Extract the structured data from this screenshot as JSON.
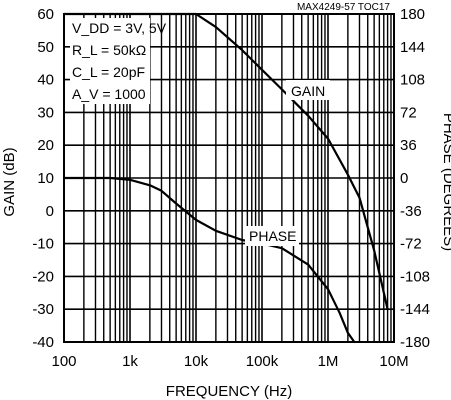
{
  "chart_data": {
    "type": "line",
    "note": "MAX4249-57 TOC17",
    "xlabel": "FREQUENCY (Hz)",
    "ylabel_left": "GAIN (dB)",
    "ylabel_right": "PHASE (DEGREES)",
    "x_scale": "log",
    "xlim": [
      100,
      10000000
    ],
    "ylim_left": [
      -40,
      60
    ],
    "ylim_right": [
      -180,
      180
    ],
    "x_ticks": [
      "100",
      "1k",
      "10k",
      "100k",
      "1M",
      "10M"
    ],
    "y_ticks_left": [
      "60",
      "50",
      "40",
      "30",
      "20",
      "10",
      "0",
      "-10",
      "-20",
      "-30",
      "-40"
    ],
    "y_ticks_right": [
      "180",
      "144",
      "108",
      "72",
      "36",
      "0",
      "-36",
      "-72",
      "-108",
      "-144",
      "-180"
    ],
    "grid": true,
    "conditions": {
      "line1": "V_DD = 3V, 5V",
      "line2": "R_L = 50kΩ",
      "line3": "C_L = 20pF",
      "line4": "A_V = 1000"
    },
    "series": [
      {
        "name": "GAIN",
        "axis": "left",
        "x": [
          100,
          1000,
          10000,
          20000,
          50000,
          100000,
          200000,
          500000,
          1000000,
          2000000,
          3000000,
          5000000,
          8000000
        ],
        "y": [
          60,
          60,
          60,
          56,
          49,
          43,
          37,
          29,
          22,
          11,
          4,
          -12,
          -30
        ]
      },
      {
        "name": "PHASE",
        "axis": "right",
        "x": [
          100,
          500,
          1000,
          2000,
          3000,
          5000,
          10000,
          20000,
          50000,
          100000,
          200000,
          500000,
          1000000,
          1500000,
          2000000,
          2500000
        ],
        "y": [
          0,
          0,
          -2,
          -8,
          -14,
          -28,
          -46,
          -58,
          -68,
          -72,
          -77,
          -95,
          -122,
          -148,
          -170,
          -180
        ]
      }
    ]
  }
}
